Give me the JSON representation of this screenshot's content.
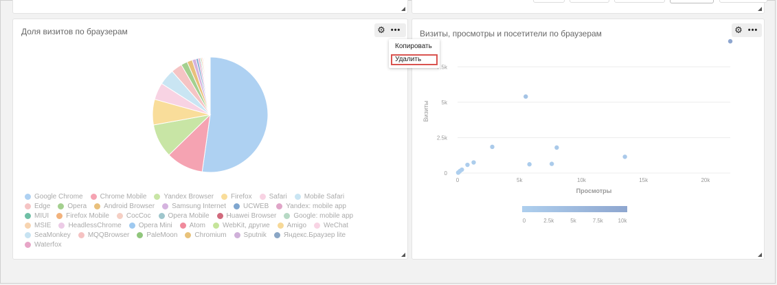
{
  "left_panel": {
    "title": "Доля визитов по браузерам"
  },
  "right_panel": {
    "title": "Визиты, просмотры и посетители по браузерам"
  },
  "context_menu": {
    "items": [
      "Копировать",
      "Удалить"
    ]
  },
  "icons": {
    "settings": "gear-icon",
    "more": "more-icon"
  },
  "legend_rows": [
    [
      {
        "label": "Google Chrome",
        "color": "#aed1f2"
      },
      {
        "label": "Chrome Mobile",
        "color": "#f5a3b2"
      },
      {
        "label": "Yandex Browser",
        "color": "#c8e5a5"
      },
      {
        "label": "Firefox",
        "color": "#f9dd9a"
      },
      {
        "label": "Safari",
        "color": "#f8d3e3"
      },
      {
        "label": "Mobile Safari",
        "color": "#c9e5f3"
      }
    ],
    [
      {
        "label": "Edge",
        "color": "#f5c4c4"
      },
      {
        "label": "Opera",
        "color": "#a4d08f"
      },
      {
        "label": "Android Browser",
        "color": "#e9c07c"
      },
      {
        "label": "Samsung Internet",
        "color": "#d5b3df"
      },
      {
        "label": "UCWEB",
        "color": "#7fa6cf"
      },
      {
        "label": "Yandex: mobile app",
        "color": "#e0a5c8"
      }
    ],
    [
      {
        "label": "MIUI",
        "color": "#6fbfa5"
      },
      {
        "label": "Firefox Mobile",
        "color": "#f2b27c"
      },
      {
        "label": "CocCoc",
        "color": "#f5cfc4"
      },
      {
        "label": "Opera Mobile",
        "color": "#9fc6cc"
      },
      {
        "label": "Huawei Browser",
        "color": "#d16a7d"
      },
      {
        "label": "Google: mobile app",
        "color": "#b6d9c4"
      }
    ],
    [
      {
        "label": "MSIE",
        "color": "#f7d4b0"
      },
      {
        "label": "HeadlessChrome",
        "color": "#eccbe6"
      },
      {
        "label": "Opera Mini",
        "color": "#9ec9f0"
      },
      {
        "label": "Atom",
        "color": "#f08a9c"
      },
      {
        "label": "WebKit, другие",
        "color": "#c5e49a"
      },
      {
        "label": "Amigo",
        "color": "#f7d998"
      },
      {
        "label": "WeChat",
        "color": "#f8d4e4"
      }
    ],
    [
      {
        "label": "SeaMonkey",
        "color": "#c7e3f2"
      },
      {
        "label": "MQQBrowser",
        "color": "#f5c2c2"
      },
      {
        "label": "PaleMoon",
        "color": "#90c67c"
      },
      {
        "label": "Chromium",
        "color": "#e8c27a"
      },
      {
        "label": "Sputnik",
        "color": "#cfb0d9"
      },
      {
        "label": "Яндекс.Браузер lite",
        "color": "#8aa6c5"
      }
    ],
    [
      {
        "label": "Waterfox",
        "color": "#e7a5c7"
      }
    ]
  ],
  "chart_data": [
    {
      "type": "pie",
      "title": "Доля визитов по браузерам",
      "categories": [
        "Google Chrome",
        "Chrome Mobile",
        "Yandex Browser",
        "Firefox",
        "Safari",
        "Mobile Safari",
        "Edge",
        "Opera",
        "Android Browser",
        "Samsung Internet",
        "UCWEB",
        "Yandex: mobile app",
        "MIUI",
        "Firefox Mobile",
        "CocCoc",
        "Opera Mobile",
        "Huawei Browser",
        "Google: mobile app",
        "MSIE",
        "HeadlessChrome",
        "Opera Mini",
        "Atom",
        "WebKit, другие",
        "Amigo",
        "WeChat",
        "SeaMonkey",
        "MQQBrowser",
        "PaleMoon",
        "Chromium",
        "Sputnik",
        "Яндекс.Браузер lite",
        "Waterfox"
      ],
      "values": [
        52.5,
        10.5,
        9.5,
        7.2,
        4.8,
        4.5,
        3.1,
        1.8,
        1.5,
        1.1,
        0.6,
        0.5,
        0.3,
        0.3,
        0.3,
        0.2,
        0.2,
        0.2,
        0.1,
        0.1,
        0.1,
        0.1,
        0.1,
        0.1,
        0.1,
        0.1,
        0.1,
        0.1,
        0.1,
        0.1,
        0.1,
        0.1
      ],
      "colors": [
        "#aed1f2",
        "#f5a3b2",
        "#c8e5a5",
        "#f9dd9a",
        "#f8d3e3",
        "#c9e5f3",
        "#f5c4c4",
        "#a4d08f",
        "#e9c07c",
        "#d5b3df",
        "#7fa6cf",
        "#e0a5c8",
        "#6fbfa5",
        "#f2b27c",
        "#f5cfc4",
        "#9fc6cc",
        "#d16a7d",
        "#b6d9c4",
        "#f7d4b0",
        "#eccbe6",
        "#9ec9f0",
        "#f08a9c",
        "#c5e49a",
        "#f7d998",
        "#f8d4e4",
        "#c7e3f2",
        "#f5c2c2",
        "#90c67c",
        "#e8c27a",
        "#cfb0d9",
        "#8aa6c5",
        "#e7a5c7"
      ],
      "legend_position": "bottom"
    },
    {
      "type": "scatter",
      "title": "Визиты, просмотры и посетители по браузерам",
      "xlabel": "Просмотры",
      "ylabel": "Визиты",
      "xlim": [
        0,
        22000
      ],
      "ylim": [
        0,
        9500
      ],
      "xticks": [
        0,
        5000,
        10000,
        15000,
        20000
      ],
      "xtick_labels": [
        "0",
        "5k",
        "10k",
        "15k",
        "20k"
      ],
      "yticks": [
        0,
        2500,
        5000,
        7500
      ],
      "ytick_labels": [
        "0",
        "2.5k",
        "5k",
        "7.5k"
      ],
      "grid": true,
      "points": [
        {
          "x": 22000,
          "y": 9300,
          "color": 11000
        },
        {
          "x": 5500,
          "y": 5400,
          "color": 3000
        },
        {
          "x": 2800,
          "y": 1850,
          "color": 1200
        },
        {
          "x": 8000,
          "y": 1800,
          "color": 1500
        },
        {
          "x": 13500,
          "y": 1150,
          "color": 1400
        },
        {
          "x": 1300,
          "y": 750,
          "color": 500
        },
        {
          "x": 800,
          "y": 580,
          "color": 400
        },
        {
          "x": 5800,
          "y": 620,
          "color": 800
        },
        {
          "x": 7600,
          "y": 650,
          "color": 900
        },
        {
          "x": 200,
          "y": 150,
          "color": 100
        },
        {
          "x": 100,
          "y": 60,
          "color": 50
        },
        {
          "x": 350,
          "y": 240,
          "color": 150
        },
        {
          "x": 50,
          "y": 30,
          "color": 20
        }
      ],
      "color_scale": {
        "label_ticks": [
          0,
          2500,
          5000,
          7500,
          10000
        ],
        "tick_labels": [
          "0",
          "2.5k",
          "5k",
          "7.5k",
          "10k"
        ],
        "min_color": "#aecfee",
        "max_color": "#8ea6cf"
      }
    }
  ]
}
